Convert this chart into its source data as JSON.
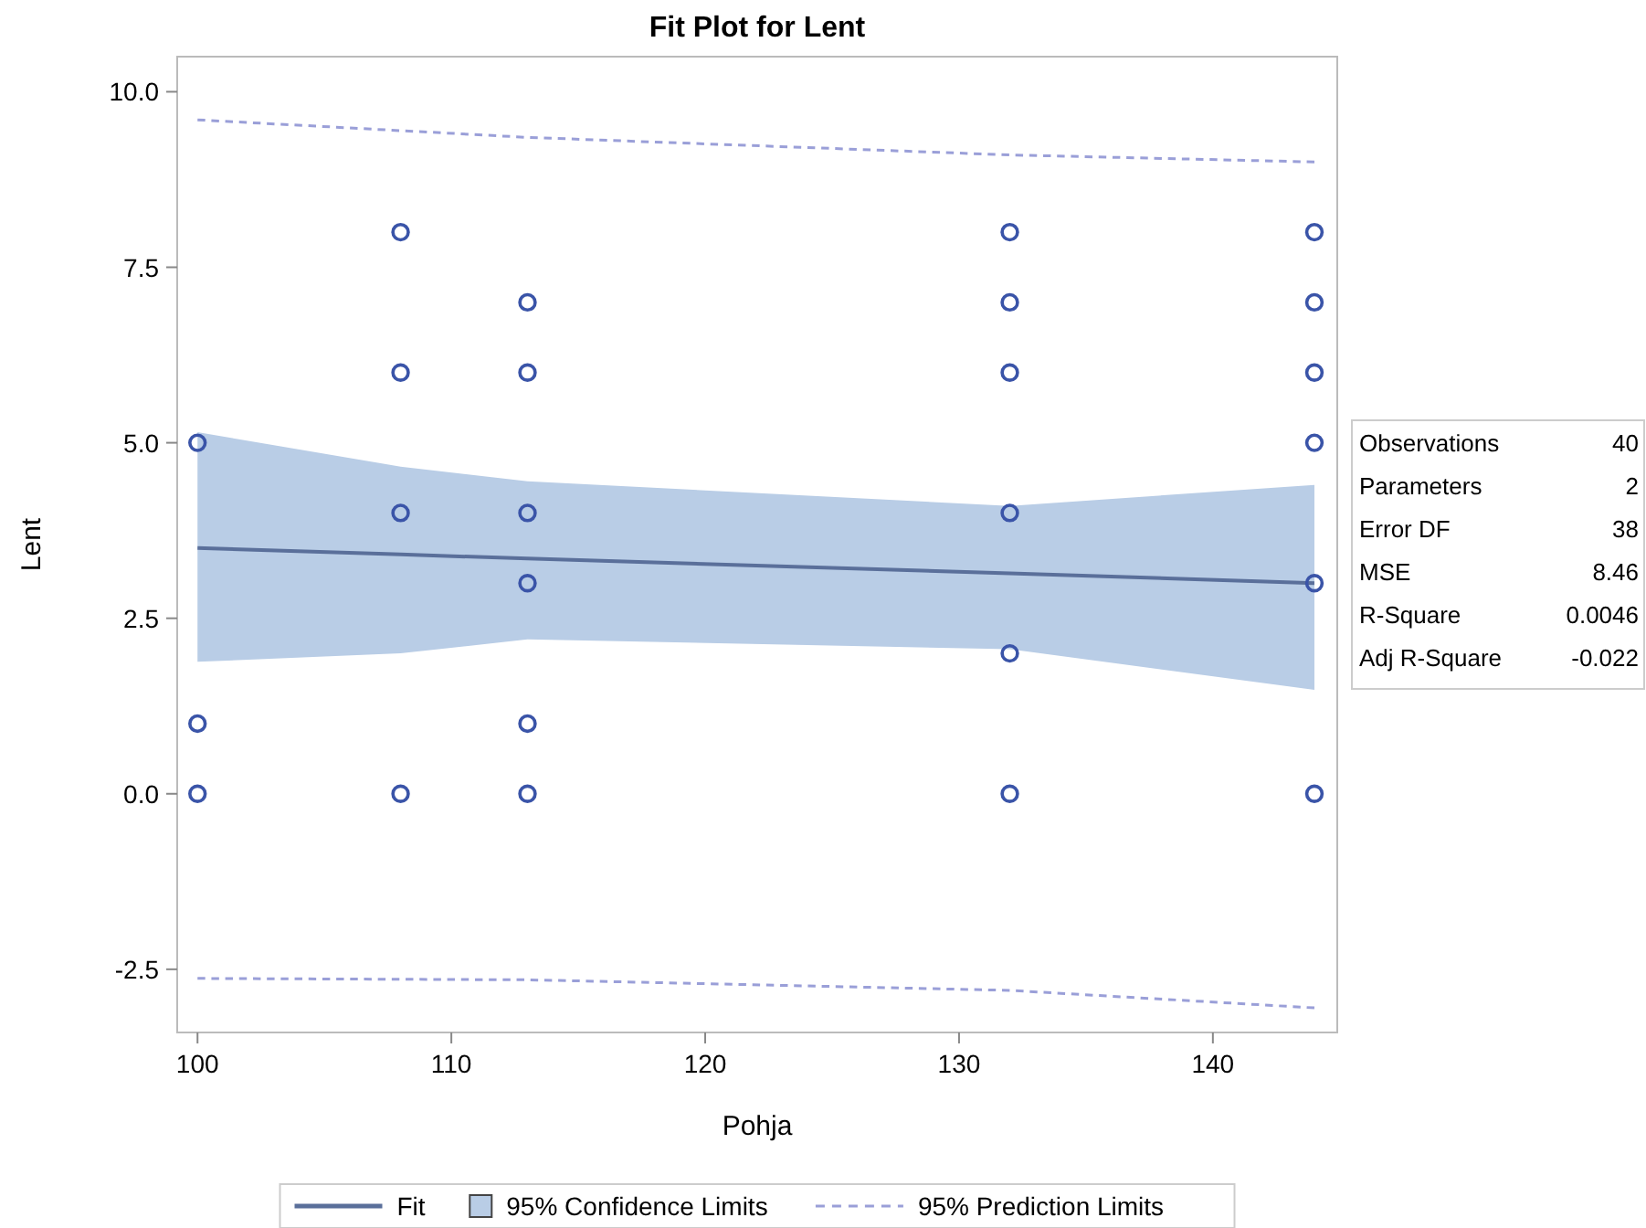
{
  "chart_data": {
    "type": "line",
    "title": "Fit Plot for Lent",
    "xlabel": "Pohja",
    "ylabel": "Lent",
    "xlim": [
      99.2,
      144.9
    ],
    "xticks": [
      100,
      110,
      120,
      130,
      140
    ],
    "ylim": [
      -3.4,
      10.5
    ],
    "yticks": [
      {
        "value": -2.5,
        "label": "-2.5"
      },
      {
        "value": 0,
        "label": "0.0"
      },
      {
        "value": 2.5,
        "label": "2.5"
      },
      {
        "value": 5,
        "label": "5.0"
      },
      {
        "value": 7.5,
        "label": "7.5"
      },
      {
        "value": 10,
        "label": "10.0"
      }
    ],
    "grid": false,
    "legend": "bottom",
    "series": [
      {
        "name": "Fit",
        "color": "#5a6f9a",
        "line_style": "solid",
        "x": [
          100,
          108,
          113,
          132,
          144
        ],
        "values": [
          3.5,
          3.41,
          3.35,
          3.14,
          3.0
        ],
        "lower": [
          1.88,
          2.0,
          2.2,
          2.06,
          1.48
        ],
        "upper": [
          5.15,
          4.66,
          4.45,
          4.1,
          4.4
        ]
      },
      {
        "name": "95% Prediction Limits",
        "color": "#9a9fd8",
        "line_style": "dashed",
        "x": [
          100,
          113,
          132,
          144
        ],
        "values": [
          9.6,
          9.35,
          9.1,
          9.0
        ]
      },
      {
        "color": "#9a9fd8",
        "line_style": "dashed",
        "x": [
          100,
          113,
          132,
          144
        ],
        "values": [
          -2.63,
          -2.65,
          -2.8,
          -3.05
        ]
      },
      {
        "type": "scatter",
        "marker": "circle",
        "color": "#3a54a8",
        "x": [
          100,
          100,
          100,
          108,
          108,
          108,
          108,
          113,
          113,
          113,
          113,
          113,
          113,
          132,
          132,
          132,
          132,
          132,
          132,
          144,
          144,
          144,
          144,
          144,
          144
        ],
        "values": [
          5,
          1,
          0,
          8,
          6,
          4,
          0,
          7,
          6,
          4,
          3,
          1,
          0,
          8,
          7,
          6,
          4,
          2,
          0,
          8,
          7,
          6,
          5,
          3,
          0
        ]
      }
    ],
    "annotations": [
      "95% Confidence Limits",
      "Observations",
      "40",
      "Parameters",
      "2",
      "Error DF",
      "38",
      "MSE",
      "8.46",
      "R-Square",
      "0.0046",
      "Adj R-Square",
      "-0.022"
    ]
  }
}
